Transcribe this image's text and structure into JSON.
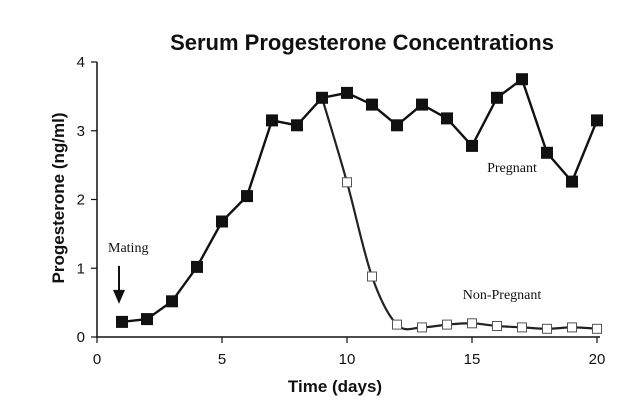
{
  "chart_data": {
    "type": "line",
    "title": "Serum Progesterone Concentrations",
    "xlabel": "Time (days)",
    "ylabel": "Progesterone (ng/ml)",
    "xlim": [
      0,
      20
    ],
    "ylim": [
      0,
      4
    ],
    "xticks": [
      0,
      5,
      10,
      15,
      20
    ],
    "yticks": [
      0,
      1,
      2,
      3,
      4
    ],
    "grid": false,
    "series": [
      {
        "name": "Pregnant",
        "marker": "filled-square",
        "x": [
          1,
          2,
          3,
          4,
          5,
          6,
          7,
          8,
          9,
          10,
          11,
          12,
          13,
          14,
          15,
          16,
          17,
          18,
          19,
          20
        ],
        "values": [
          0.22,
          0.26,
          0.52,
          1.02,
          1.68,
          2.05,
          3.15,
          3.08,
          3.48,
          3.55,
          3.38,
          3.08,
          3.38,
          3.18,
          2.78,
          3.48,
          3.75,
          2.68,
          2.26,
          3.15
        ]
      },
      {
        "name": "Non-Pregnant",
        "marker": "open-square",
        "x": [
          9,
          10,
          11,
          12,
          13,
          14,
          15,
          16,
          17,
          18,
          19,
          20
        ],
        "values": [
          3.48,
          2.25,
          0.88,
          0.18,
          0.14,
          0.18,
          0.2,
          0.16,
          0.14,
          0.12,
          0.14,
          0.12
        ]
      }
    ],
    "annotations": [
      {
        "text": "Mating",
        "x": 1,
        "y": 0.22,
        "kind": "arrow"
      },
      {
        "text": "Pregnant",
        "x": 16.6,
        "y": 2.4
      },
      {
        "text": "Non-Pregnant",
        "x": 16.2,
        "y": 0.55
      }
    ]
  }
}
